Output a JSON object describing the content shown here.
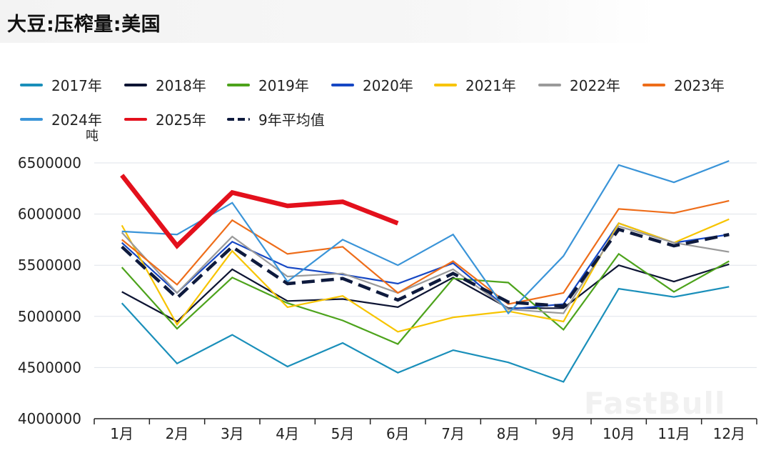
{
  "header": {
    "title": "大豆:压榨量:美国"
  },
  "unit": "吨",
  "watermark": "FastBull",
  "chart_data": {
    "type": "line",
    "title": "大豆:压榨量:美国",
    "xlabel": "",
    "ylabel": "吨",
    "ylim": [
      4000000,
      6500000
    ],
    "yticks": [
      4000000,
      4500000,
      5000000,
      5500000,
      6000000,
      6500000
    ],
    "ytick_labels": [
      "4000000",
      "4500000",
      "5000000",
      "5500000",
      "6000000",
      "6500000"
    ],
    "categories": [
      "1月",
      "2月",
      "3月",
      "4月",
      "5月",
      "6月",
      "7月",
      "8月",
      "9月",
      "10月",
      "11月",
      "12月"
    ],
    "grid": true,
    "legend_position": "top",
    "series": [
      {
        "name": "2017年",
        "color": "#1a8fba",
        "style": "solid",
        "width": "thin",
        "values": [
          5130000,
          4540000,
          4820000,
          4510000,
          4740000,
          4450000,
          4670000,
          4550000,
          4360000,
          5270000,
          5190000,
          5290000
        ]
      },
      {
        "name": "2018年",
        "color": "#0d1433",
        "style": "solid",
        "width": "thin",
        "values": [
          5240000,
          4950000,
          5460000,
          5150000,
          5170000,
          5090000,
          5380000,
          5080000,
          5080000,
          5500000,
          5340000,
          5510000
        ]
      },
      {
        "name": "2019年",
        "color": "#4da31c",
        "style": "solid",
        "width": "thin",
        "values": [
          5480000,
          4880000,
          5380000,
          5130000,
          4960000,
          4730000,
          5370000,
          5330000,
          4870000,
          5610000,
          5240000,
          5540000
        ]
      },
      {
        "name": "2020年",
        "color": "#1647c4",
        "style": "solid",
        "width": "thin",
        "values": [
          5720000,
          5230000,
          5730000,
          5480000,
          5410000,
          5320000,
          5520000,
          5070000,
          5120000,
          5910000,
          5720000,
          5800000
        ]
      },
      {
        "name": "2021年",
        "color": "#f7c400",
        "style": "solid",
        "width": "thin",
        "values": [
          5890000,
          4920000,
          5640000,
          5090000,
          5200000,
          4850000,
          4990000,
          5050000,
          4950000,
          5910000,
          5720000,
          5950000
        ]
      },
      {
        "name": "2022年",
        "color": "#9a9a9a",
        "style": "solid",
        "width": "thin",
        "values": [
          5820000,
          5230000,
          5780000,
          5390000,
          5420000,
          5230000,
          5460000,
          5070000,
          5030000,
          5880000,
          5720000,
          5630000
        ]
      },
      {
        "name": "2023年",
        "color": "#ee6d1a",
        "style": "solid",
        "width": "thin",
        "values": [
          5750000,
          5310000,
          5940000,
          5610000,
          5680000,
          5230000,
          5540000,
          5120000,
          5230000,
          6050000,
          6010000,
          6130000
        ]
      },
      {
        "name": "2024年",
        "color": "#3a94d8",
        "style": "solid",
        "width": "thin",
        "values": [
          5830000,
          5800000,
          6110000,
          5340000,
          5750000,
          5500000,
          5800000,
          5030000,
          5590000,
          6480000,
          6310000,
          6520000
        ]
      },
      {
        "name": "2025年",
        "color": "#e3101c",
        "style": "solid",
        "width": "thick",
        "values": [
          6380000,
          5690000,
          6210000,
          6080000,
          6120000,
          5910000,
          null,
          null,
          null,
          null,
          null,
          null
        ]
      },
      {
        "name": "9年平均值",
        "color": "#0e1a3d",
        "style": "dashed",
        "width": "medium",
        "values": [
          5680000,
          5180000,
          5680000,
          5320000,
          5370000,
          5160000,
          5420000,
          5140000,
          5100000,
          5850000,
          5690000,
          5800000
        ]
      }
    ]
  }
}
